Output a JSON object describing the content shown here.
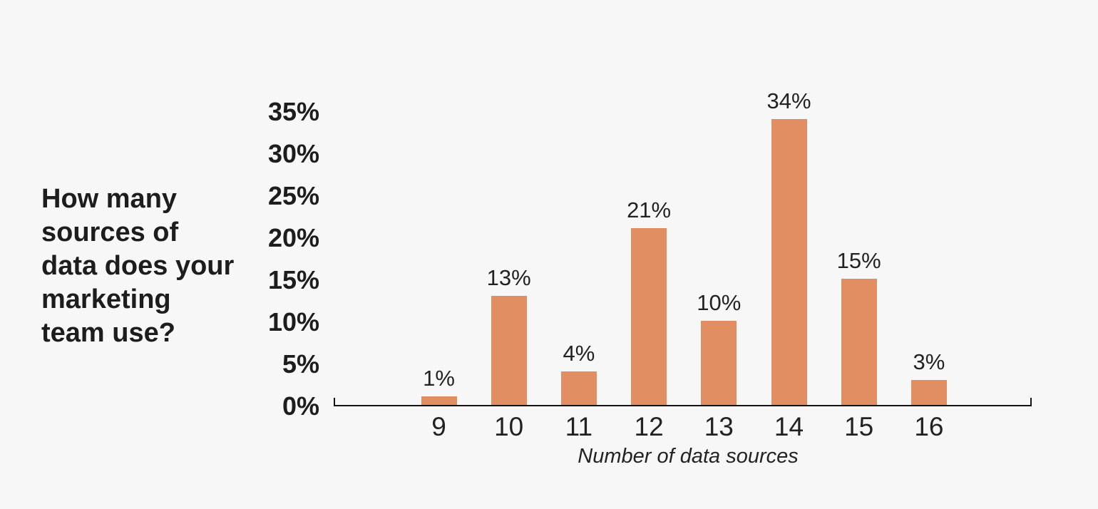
{
  "background_color": "#f7f7f7",
  "title": {
    "full_text": "How many sources of data does your marketing team use?",
    "lines": [
      "How many",
      "sources of",
      "data does your",
      "marketing",
      "team use?"
    ]
  },
  "chart_data": {
    "type": "bar",
    "title": "How many sources of data does your marketing team use?",
    "categories": [
      "9",
      "10",
      "11",
      "12",
      "13",
      "14",
      "15",
      "16"
    ],
    "values": [
      1,
      13,
      4,
      21,
      10,
      34,
      15,
      3
    ],
    "bar_labels": [
      "1%",
      "13%",
      "4%",
      "21%",
      "10%",
      "34%",
      "15%",
      "3%"
    ],
    "xlabel": "Number of data sources",
    "ylabel": "",
    "y_axis": {
      "tick_values": [
        0,
        5,
        10,
        15,
        20,
        25,
        30,
        35
      ],
      "tick_labels": [
        "0%",
        "5%",
        "10%",
        "15%",
        "20%",
        "25%",
        "30%",
        "35%"
      ],
      "range": [
        0,
        35
      ]
    },
    "grid": false,
    "legend": "none",
    "bar_color": "#e28e63",
    "text_color": "#1d1d1d",
    "axis_color": "#141414"
  }
}
